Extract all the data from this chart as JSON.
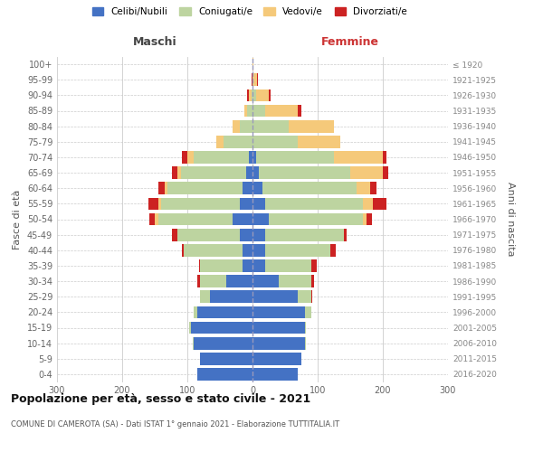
{
  "age_groups": [
    "0-4",
    "5-9",
    "10-14",
    "15-19",
    "20-24",
    "25-29",
    "30-34",
    "35-39",
    "40-44",
    "45-49",
    "50-54",
    "55-59",
    "60-64",
    "65-69",
    "70-74",
    "75-79",
    "80-84",
    "85-89",
    "90-94",
    "95-99",
    "100+"
  ],
  "birth_years": [
    "2016-2020",
    "2011-2015",
    "2006-2010",
    "2001-2005",
    "1996-2000",
    "1991-1995",
    "1986-1990",
    "1981-1985",
    "1976-1980",
    "1971-1975",
    "1966-1970",
    "1961-1965",
    "1956-1960",
    "1951-1955",
    "1946-1950",
    "1941-1945",
    "1936-1940",
    "1931-1935",
    "1926-1930",
    "1921-1925",
    "≤ 1920"
  ],
  "colors": {
    "celibi": "#4472c4",
    "coniugati": "#bdd4a0",
    "vedovi": "#f5c97a",
    "divorziati": "#cc2222"
  },
  "maschi": {
    "celibi": [
      85,
      80,
      90,
      95,
      85,
      65,
      40,
      15,
      15,
      20,
      30,
      20,
      15,
      10,
      5,
      0,
      0,
      0,
      0,
      0,
      0
    ],
    "coniugati": [
      0,
      0,
      2,
      2,
      5,
      15,
      40,
      65,
      90,
      95,
      115,
      120,
      115,
      100,
      85,
      45,
      20,
      8,
      2,
      0,
      0
    ],
    "vedovi": [
      0,
      0,
      0,
      0,
      0,
      0,
      0,
      0,
      0,
      0,
      5,
      5,
      5,
      5,
      10,
      10,
      10,
      5,
      3,
      0,
      0
    ],
    "divorziati": [
      0,
      0,
      0,
      0,
      0,
      0,
      5,
      2,
      3,
      8,
      8,
      15,
      10,
      8,
      8,
      0,
      0,
      0,
      4,
      2,
      0
    ]
  },
  "femmine": {
    "celibi": [
      70,
      75,
      80,
      80,
      80,
      70,
      40,
      20,
      20,
      20,
      25,
      20,
      15,
      10,
      5,
      0,
      0,
      0,
      0,
      0,
      0
    ],
    "coniugati": [
      0,
      0,
      2,
      2,
      10,
      20,
      50,
      70,
      100,
      120,
      145,
      150,
      145,
      140,
      120,
      70,
      55,
      20,
      5,
      2,
      0
    ],
    "vedovi": [
      0,
      0,
      0,
      0,
      0,
      0,
      0,
      0,
      0,
      0,
      5,
      15,
      20,
      50,
      75,
      65,
      70,
      50,
      20,
      5,
      2
    ],
    "divorziati": [
      0,
      0,
      0,
      0,
      0,
      2,
      5,
      8,
      8,
      5,
      8,
      20,
      10,
      8,
      5,
      0,
      0,
      5,
      3,
      2,
      0
    ]
  },
  "title": "Popolazione per età, sesso e stato civile - 2021",
  "subtitle": "COMUNE DI CAMEROTA (SA) - Dati ISTAT 1° gennaio 2021 - Elaborazione TUTTITALIA.IT",
  "label_maschi": "Maschi",
  "label_femmine": "Femmine",
  "ylabel_left": "Fasce di età",
  "ylabel_right": "Anni di nascita",
  "xlim": 300,
  "bg_color": "#ffffff",
  "grid_color": "#cccccc",
  "legend_labels": [
    "Celibi/Nubili",
    "Coniugati/e",
    "Vedovi/e",
    "Divorziati/e"
  ]
}
